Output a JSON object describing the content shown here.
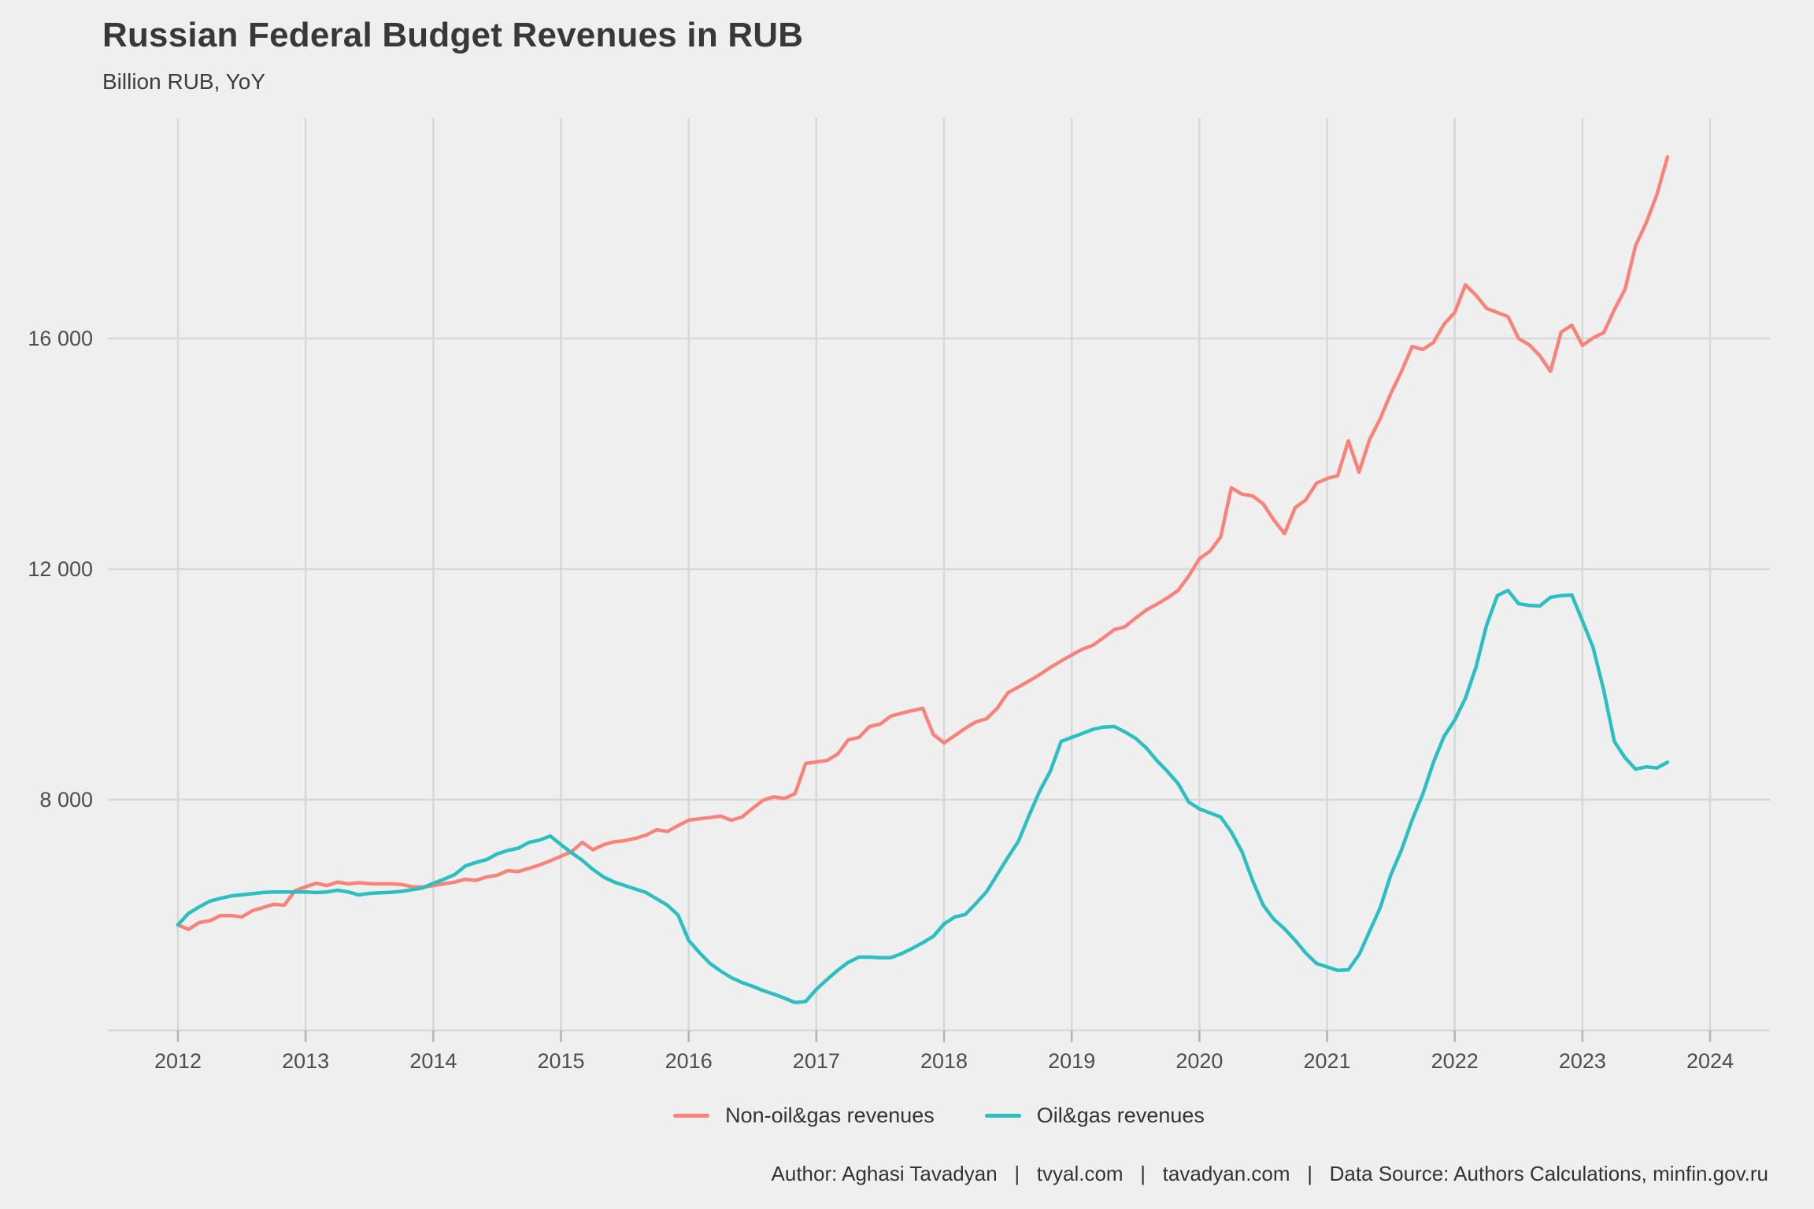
{
  "header": {
    "title": "Russian Federal Budget Revenues in RUB",
    "subtitle": "Billion RUB, YoY"
  },
  "legend": {
    "items": [
      {
        "label": "Non-oil&gas revenues",
        "color": "#F8837B"
      },
      {
        "label": "Oil&gas revenues",
        "color": "#2BBFC2"
      }
    ]
  },
  "caption": {
    "text": "Author: Aghasi Tavadyan   |   tvyal.com   |   tavadyan.com   |   Data Source: Authors Calculations, minfin.gov.ru"
  },
  "chart_data": {
    "type": "line",
    "title": "Russian Federal Budget Revenues in RUB",
    "subtitle": "Billion RUB, YoY",
    "xlabel": "",
    "ylabel": "",
    "grid": true,
    "legend_position": "bottom",
    "x_start_year": 2012,
    "x_step_years": 0.0833333,
    "x_tick_years": [
      2012,
      2013,
      2014,
      2015,
      2016,
      2017,
      2018,
      2019,
      2020,
      2021,
      2022,
      2023,
      2024
    ],
    "y_tick_labels": [
      "16 000",
      "12 000",
      "8 000"
    ],
    "y_tick_values": [
      16000,
      12000,
      8000
    ],
    "y_gridline_values": [
      16000,
      12000,
      8000,
      4000
    ],
    "ylim": [
      4000,
      19800
    ],
    "xlim": [
      2011.45,
      2024.47
    ],
    "series": [
      {
        "name": "Non-oil&gas revenues",
        "color": "#F8837B",
        "values": [
          5830,
          5750,
          5870,
          5900,
          5990,
          5990,
          5966,
          6075,
          6130,
          6185,
          6171,
          6420,
          6490,
          6550,
          6510,
          6570,
          6540,
          6560,
          6545,
          6540,
          6540,
          6530,
          6490,
          6485,
          6510,
          6540,
          6570,
          6620,
          6600,
          6660,
          6690,
          6770,
          6755,
          6810,
          6870,
          6940,
          7020,
          7100,
          7260,
          7130,
          7220,
          7270,
          7290,
          7330,
          7385,
          7480,
          7450,
          7550,
          7645,
          7670,
          7690,
          7715,
          7645,
          7700,
          7850,
          7990,
          8050,
          8020,
          8105,
          8630,
          8655,
          8680,
          8790,
          9040,
          9080,
          9270,
          9310,
          9450,
          9500,
          9545,
          9585,
          9130,
          8985,
          9110,
          9240,
          9350,
          9405,
          9585,
          9855,
          9955,
          10060,
          10170,
          10295,
          10405,
          10510,
          10610,
          10680,
          10810,
          10950,
          11000,
          11150,
          11290,
          11390,
          11500,
          11630,
          11880,
          12180,
          12310,
          12560,
          13410,
          13300,
          13270,
          13130,
          12850,
          12615,
          13065,
          13200,
          13490,
          13570,
          13620,
          14225,
          13680,
          14250,
          14610,
          15050,
          15430,
          15860,
          15810,
          15930,
          16250,
          16450,
          16930,
          16750,
          16520,
          16450,
          16380,
          16000,
          15890,
          15700,
          15430,
          16110,
          16230,
          15880,
          16010,
          16100,
          16500,
          16850,
          17610,
          18010,
          18500,
          19150
        ]
      },
      {
        "name": "Oil&gas revenues",
        "color": "#2BBFC2",
        "values": [
          5830,
          6030,
          6140,
          6240,
          6290,
          6330,
          6350,
          6370,
          6390,
          6400,
          6400,
          6400,
          6400,
          6390,
          6400,
          6430,
          6400,
          6350,
          6375,
          6385,
          6395,
          6410,
          6440,
          6470,
          6550,
          6620,
          6700,
          6850,
          6910,
          6960,
          7060,
          7120,
          7160,
          7260,
          7300,
          7370,
          7220,
          7080,
          6950,
          6790,
          6660,
          6570,
          6510,
          6450,
          6390,
          6280,
          6170,
          6000,
          5560,
          5350,
          5160,
          5030,
          4915,
          4830,
          4765,
          4690,
          4628,
          4560,
          4480,
          4500,
          4710,
          4880,
          5040,
          5180,
          5270,
          5270,
          5260,
          5260,
          5330,
          5420,
          5520,
          5630,
          5845,
          5965,
          6010,
          6200,
          6405,
          6700,
          7000,
          7280,
          7730,
          8150,
          8500,
          9010,
          9080,
          9150,
          9220,
          9260,
          9270,
          9175,
          9065,
          8900,
          8680,
          8490,
          8280,
          7960,
          7840,
          7770,
          7700,
          7440,
          7100,
          6600,
          6170,
          5925,
          5760,
          5560,
          5340,
          5160,
          5100,
          5040,
          5050,
          5310,
          5720,
          6130,
          6700,
          7130,
          7650,
          8100,
          8650,
          9100,
          9380,
          9760,
          10300,
          11030,
          11540,
          11630,
          11400,
          11370,
          11360,
          11510,
          11540,
          11550,
          11100,
          10640,
          9900,
          9010,
          8730,
          8530,
          8570,
          8550,
          8650
        ]
      }
    ]
  },
  "theme": {
    "background": "#efefef",
    "gridline_color": "#d8d8d8",
    "tick_color": "#b5b5b5",
    "axis_text_color": "#4d4d4d",
    "title_color": "#383838"
  }
}
